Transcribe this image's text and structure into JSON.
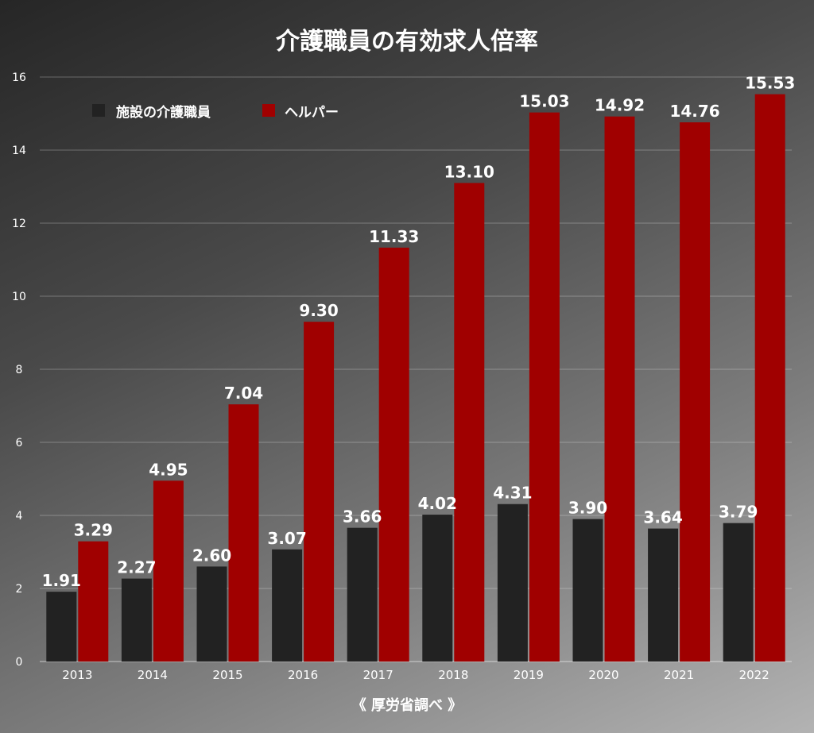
{
  "chart_data": {
    "type": "bar",
    "title": "介護職員の有効求人倍率",
    "source": "《 厚労省調べ 》",
    "categories": [
      "2013",
      "2014",
      "2015",
      "2016",
      "2017",
      "2018",
      "2019",
      "2020",
      "2021",
      "2022"
    ],
    "series": [
      {
        "name": "施設の介護職員",
        "color": "#222222",
        "values": [
          1.91,
          2.27,
          2.6,
          3.07,
          3.66,
          4.02,
          4.31,
          3.9,
          3.64,
          3.79
        ],
        "labels": [
          "1.91",
          "2.27",
          "2.60",
          "3.07",
          "3.66",
          "4.02",
          "4.31",
          "3.90",
          "3.64",
          "3.79"
        ]
      },
      {
        "name": "ヘルパー",
        "color": "#a00000",
        "values": [
          3.29,
          4.95,
          7.04,
          9.3,
          11.33,
          13.1,
          15.03,
          14.92,
          14.76,
          15.53
        ],
        "labels": [
          "3.29",
          "4.95",
          "7.04",
          "9.30",
          "11.33",
          "13.10",
          "15.03",
          "14.92",
          "14.76",
          "15.53"
        ]
      }
    ],
    "yticks": [
      "0",
      "2",
      "4",
      "6",
      "8",
      "10",
      "12",
      "14",
      "16"
    ],
    "ylim": [
      0,
      16
    ],
    "xlabel": "",
    "ylabel": "",
    "grid": true,
    "legend_position": "top-left"
  }
}
